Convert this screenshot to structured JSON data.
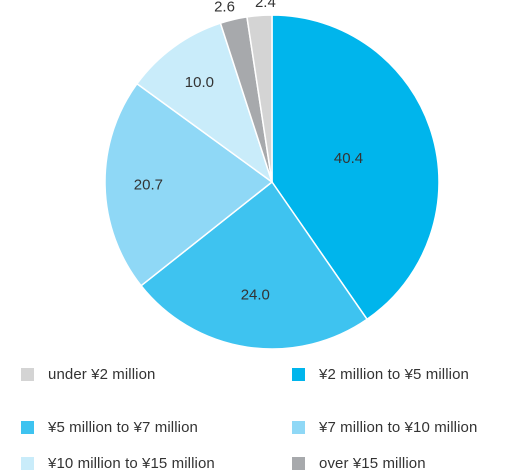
{
  "chart_data": {
    "type": "pie",
    "title": "",
    "start": "12 o'clock, clockwise",
    "slices": [
      {
        "label": "¥2 million to ¥5 million",
        "value": 40.4,
        "display": "40.4",
        "color": "#00b5ec"
      },
      {
        "label": "¥5 million to ¥7 million",
        "value": 24.0,
        "display": "24.0",
        "color": "#3ec3f0"
      },
      {
        "label": "¥7 million to ¥10 million",
        "value": 20.7,
        "display": "20.7",
        "color": "#8fd8f6"
      },
      {
        "label": "¥10 million to ¥15 million",
        "value": 10.0,
        "display": "10.0",
        "color": "#c9ecfa"
      },
      {
        "label": "over ¥15 million",
        "value": 2.6,
        "display": "2.6",
        "color": "#a7a9ac"
      },
      {
        "label": "under ¥2 million",
        "value": 2.4,
        "display": "2.4",
        "color": "#d4d4d4"
      }
    ],
    "legend": {
      "placement": "bottom, two columns",
      "items": [
        {
          "label": "under ¥2 million",
          "color": "#d4d4d4"
        },
        {
          "label": "¥2 million to ¥5 million",
          "color": "#00b5ec"
        },
        {
          "label": "¥5 million to ¥7 million",
          "color": "#3ec3f0"
        },
        {
          "label": "¥7 million to ¥10 million",
          "color": "#8fd8f6"
        },
        {
          "label": "¥10 million to ¥15 million",
          "color": "#c9ecfa"
        },
        {
          "label": "over ¥15 million",
          "color": "#a7a9ac"
        }
      ]
    }
  }
}
